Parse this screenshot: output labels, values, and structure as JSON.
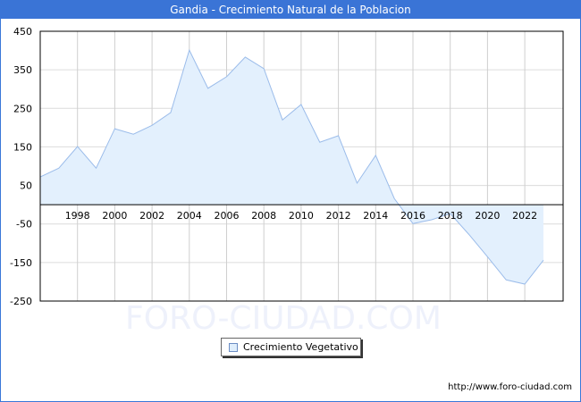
{
  "header": {
    "title": "Gandia - Crecimiento Natural de la Poblacion"
  },
  "watermark": "FORO-CIUDAD.COM",
  "footer": {
    "url": "http://www.foro-ciudad.com"
  },
  "legend": {
    "label": "Crecimiento Vegetativo"
  },
  "colors": {
    "title_bg": "#3a74d6",
    "area_fill": "#e3f0fd",
    "line": "#9bbcea",
    "grid": "#d6d6d6"
  },
  "chart_data": {
    "type": "area",
    "title": "Gandia - Crecimiento Natural de la Poblacion",
    "xlabel": "",
    "ylabel": "",
    "ylim": [
      -250,
      450
    ],
    "xlim": [
      1996,
      2023
    ],
    "yticks": [
      450,
      350,
      250,
      150,
      50,
      -50,
      -150,
      -250
    ],
    "xticks": [
      "1998",
      "2000",
      "2002",
      "2004",
      "2006",
      "2008",
      "2010",
      "2012",
      "2014",
      "2016",
      "2018",
      "2020",
      "2022"
    ],
    "grid": true,
    "legend_position": "bottom-center",
    "x": [
      1996,
      1997,
      1998,
      1999,
      2000,
      2001,
      2002,
      2003,
      2004,
      2005,
      2006,
      2007,
      2008,
      2009,
      2010,
      2011,
      2012,
      2013,
      2014,
      2015,
      2016,
      2017,
      2018,
      2019,
      2020,
      2021,
      2022,
      2023
    ],
    "series": [
      {
        "name": "Crecimiento Vegetativo",
        "values": [
          72,
          95,
          151,
          95,
          197,
          183,
          206,
          239,
          401,
          302,
          332,
          383,
          353,
          220,
          260,
          162,
          179,
          56,
          128,
          16,
          -49,
          -39,
          -23,
          -77,
          -135,
          -195,
          -206,
          -144
        ]
      }
    ]
  }
}
